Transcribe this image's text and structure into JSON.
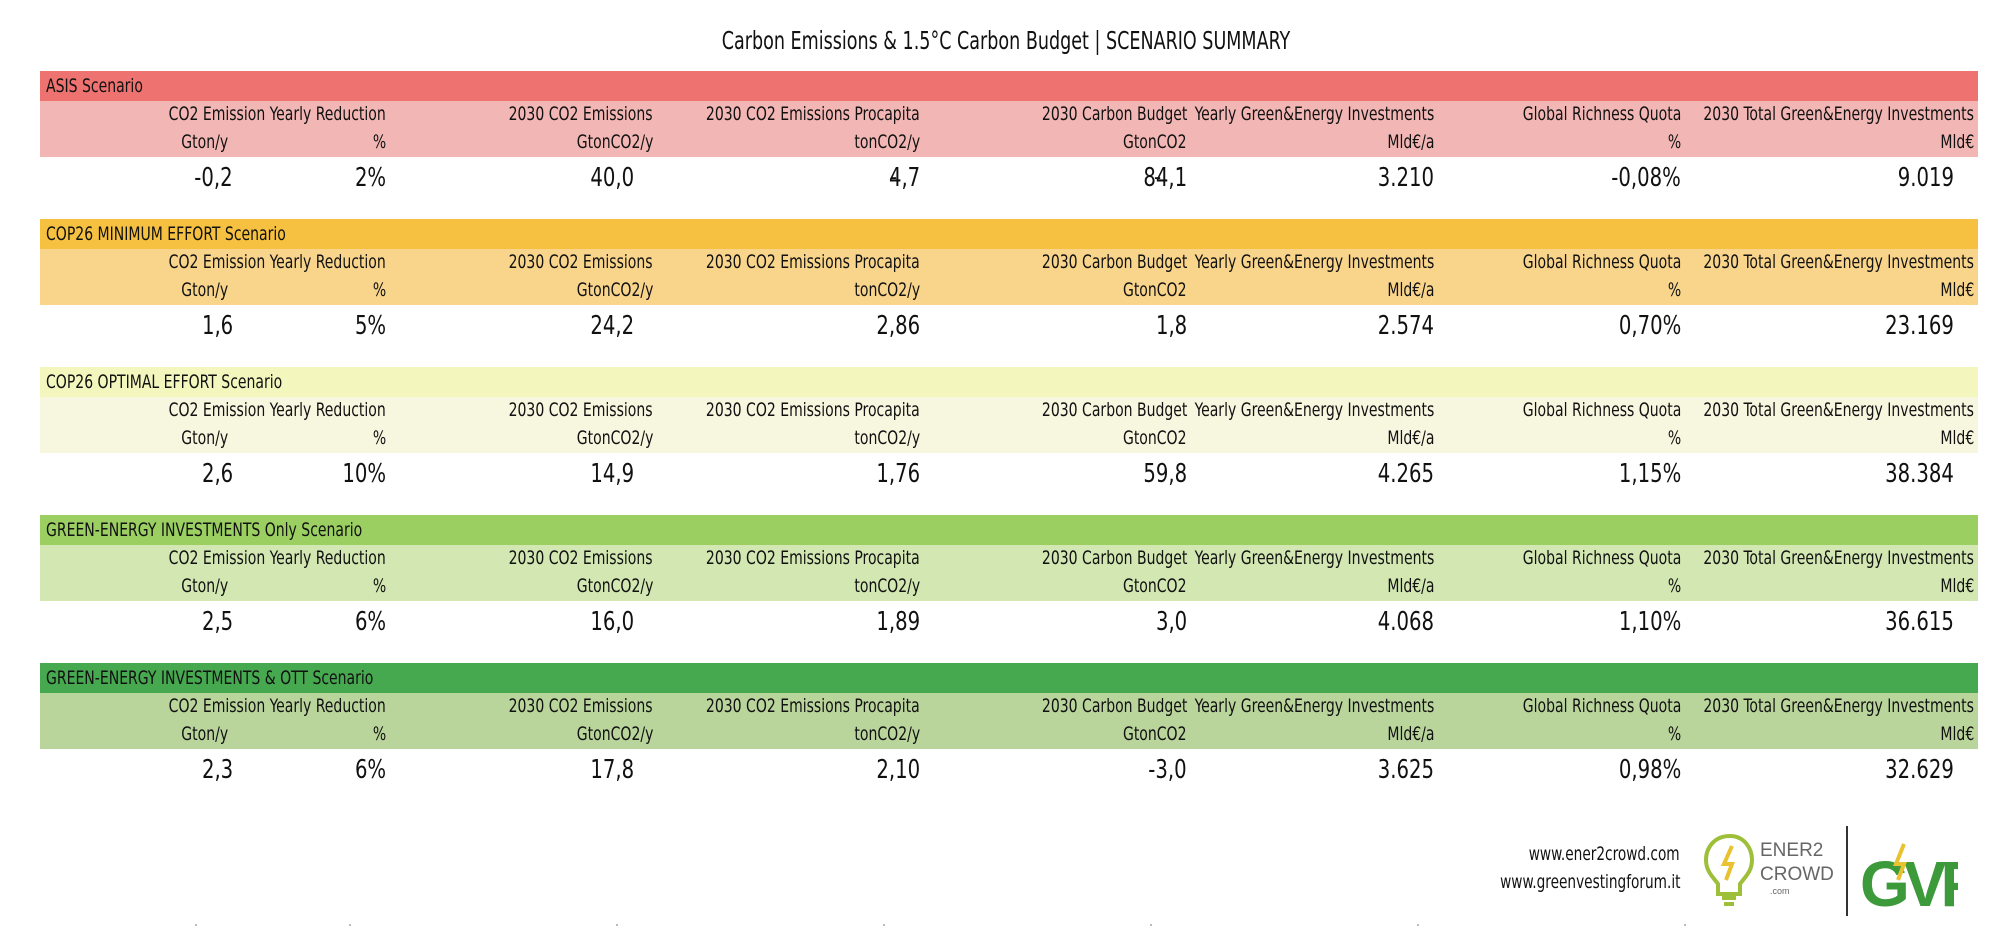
{
  "title": "Carbon Emissions & 1.5°C Carbon Budget | SCENARIO SUMMARY",
  "headers": {
    "c1": [
      "CO2 Emission Yearly Reduction",
      "Gton/y"
    ],
    "c1b": "%",
    "c2": [
      "2030 CO2 Emissions",
      "GtonCO2/y"
    ],
    "c3": [
      "2030 CO2 Emissions Procapita",
      "tonCO2/y"
    ],
    "c4": [
      "2030 Carbon Budget",
      "GtonCO2"
    ],
    "c5": [
      "Yearly Green&Energy Investments",
      "Mld€/a"
    ],
    "c6": [
      "Global Richness Quota",
      "%"
    ],
    "c7": [
      "2030 Total Green&Energy Investments",
      "Mld€"
    ]
  },
  "scenarios": [
    {
      "name": "ASIS Scenario",
      "band": "#ee7370",
      "header_bg": "#f2b7b5",
      "values": {
        "gton": "-0,2",
        "pct": "2%",
        "emissions": "40,0",
        "procapita": "4,7",
        "budget": "84,1",
        "yearly": "3.210",
        "richness": "-0,08%",
        "total": "9.019"
      },
      "dashes": [
        "-",
        "-"
      ]
    },
    {
      "name": "COP26 MINIMUM EFFORT Scenario",
      "band": "#f6c140",
      "header_bg": "#f9d58c",
      "values": {
        "gton": "1,6",
        "pct": "5%",
        "emissions": "24,2",
        "procapita": "2,86",
        "budget": "1,8",
        "yearly": "2.574",
        "richness": "0,70%",
        "total": "23.169"
      },
      "dashes": [
        "",
        ""
      ]
    },
    {
      "name": "COP26 OPTIMAL EFFORT Scenario",
      "band": "#f3f7bd",
      "header_bg": "#f7f6df",
      "values": {
        "gton": "2,6",
        "pct": "10%",
        "emissions": "14,9",
        "procapita": "1,76",
        "budget": "59,8",
        "yearly": "4.265",
        "richness": "1,15%",
        "total": "38.384"
      },
      "dashes": [
        "",
        ""
      ]
    },
    {
      "name": "GREEN-ENERGY INVESTMENTS Only Scenario",
      "band": "#9bcf62",
      "header_bg": "#d2e7b1",
      "values": {
        "gton": "2,5",
        "pct": "6%",
        "emissions": "16,0",
        "procapita": "1,89",
        "budget": "3,0",
        "yearly": "4.068",
        "richness": "1,10%",
        "total": "36.615"
      },
      "dashes": [
        "",
        ""
      ]
    },
    {
      "name": "GREEN-ENERGY INVESTMENTS & OTT Scenario",
      "band": "#46a84f",
      "header_bg": "#bad59c",
      "values": {
        "gton": "2,3",
        "pct": "6%",
        "emissions": "17,8",
        "procapita": "2,10",
        "budget": "-3,0",
        "yearly": "3.625",
        "richness": "0,98%",
        "total": "32.629"
      },
      "dashes": [
        "",
        ""
      ]
    }
  ],
  "footer": {
    "link1": "www.ener2crowd.com",
    "link2": "www.greenvestingforum.it",
    "logo1_text": [
      "ENER2",
      "CROWD",
      ".com"
    ],
    "logo2_text": "GVF"
  }
}
